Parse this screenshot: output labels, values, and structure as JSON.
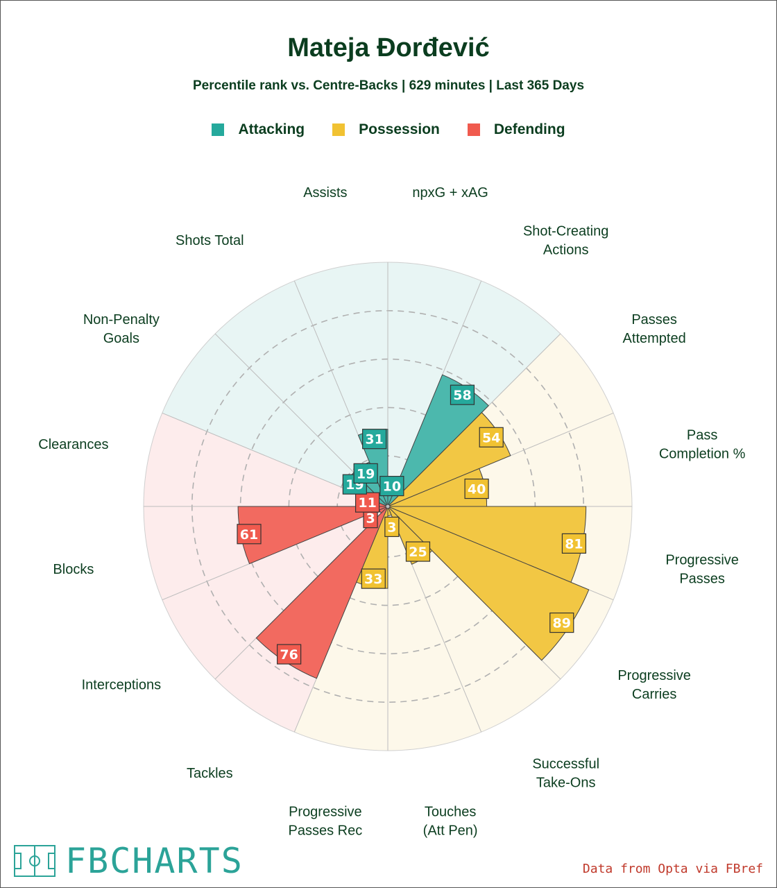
{
  "title": "Mateja Đorđević",
  "subtitle": "Percentile rank vs. Centre-Backs | 629 minutes | Last 365 Days",
  "legend": [
    {
      "label": "Attacking",
      "color": "#25a99c"
    },
    {
      "label": "Possession",
      "color": "#f1c232"
    },
    {
      "label": "Defending",
      "color": "#f05a4e"
    }
  ],
  "logo_text": "FBCHARTS",
  "source_text": "Data from Opta via FBref",
  "chart_data": {
    "type": "radar",
    "max": 100,
    "grid_rings": [
      20,
      40,
      60,
      80
    ],
    "start_angle_deg_clockwise_from_north": 0,
    "metrics": [
      {
        "label": "npxG + xAG",
        "group": "Attacking",
        "value": 10
      },
      {
        "label": "Shot-Creating Actions",
        "group": "Attacking",
        "value": 58
      },
      {
        "label": "Passes Attempted",
        "group": "Possession",
        "value": 54
      },
      {
        "label": "Pass Completion %",
        "group": "Possession",
        "value": 40
      },
      {
        "label": "Progressive Passes",
        "group": "Possession",
        "value": 81
      },
      {
        "label": "Progressive Carries",
        "group": "Possession",
        "value": 89
      },
      {
        "label": "Successful Take-Ons",
        "group": "Possession",
        "value": 25
      },
      {
        "label": "Touches (Att Pen)",
        "group": "Possession",
        "value": 3
      },
      {
        "label": "Progressive Passes Rec",
        "group": "Possession",
        "value": 33
      },
      {
        "label": "Tackles",
        "group": "Defending",
        "value": 76
      },
      {
        "label": "Interceptions",
        "group": "Defending",
        "value": 3
      },
      {
        "label": "Blocks",
        "group": "Defending",
        "value": 61
      },
      {
        "label": "Clearances",
        "group": "Defending",
        "value": 11
      },
      {
        "label": "Non-Penalty Goals",
        "group": "Attacking",
        "value": 19
      },
      {
        "label": "Shots Total",
        "group": "Attacking",
        "value": 19
      },
      {
        "label": "Assists",
        "group": "Attacking",
        "value": 31
      }
    ],
    "group_colors": {
      "Attacking": {
        "bar": "#4cb8ad",
        "box": "#25a99c",
        "bg": "#e8f5f4"
      },
      "Possession": {
        "bar": "#f2c744",
        "box": "#f1c232",
        "bg": "#fdf8ea"
      },
      "Defending": {
        "bar": "#f26a60",
        "box": "#f05a4e",
        "bg": "#fdecec"
      }
    }
  }
}
